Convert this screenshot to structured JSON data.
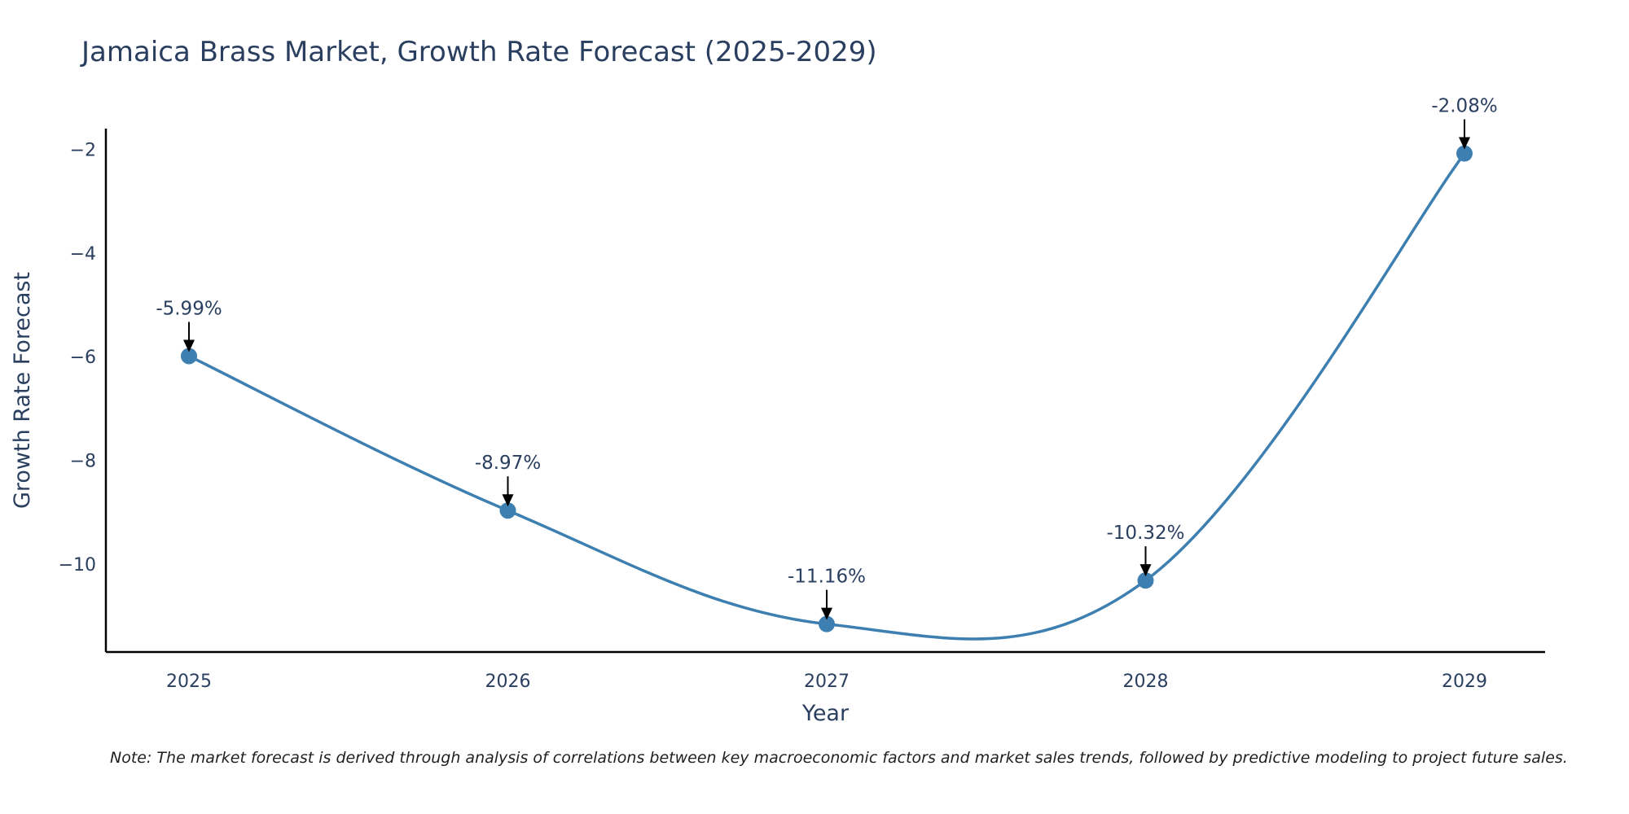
{
  "chart_data": {
    "type": "line",
    "title": "Jamaica Brass Market, Growth Rate Forecast (2025-2029)",
    "xlabel": "Year",
    "ylabel": "Growth Rate Forecast",
    "categories": [
      "2025",
      "2026",
      "2027",
      "2028",
      "2029"
    ],
    "values": [
      -5.99,
      -8.97,
      -11.16,
      -10.32,
      -2.08
    ],
    "data_labels": [
      "-5.99%",
      "-8.97%",
      "-11.16%",
      "-10.32%",
      "-2.08%"
    ],
    "ylim": [
      -11.7,
      -1.6
    ],
    "y_ticks": [
      -2,
      -4,
      -6,
      -8,
      -10
    ],
    "y_tick_labels": [
      "−2",
      "−4",
      "−6",
      "−8",
      "−10"
    ],
    "grid": false,
    "line_shape": "spline",
    "series_color": "#3d7fb0",
    "note": "Note: The market forecast is derived through analysis of correlations between key macroeconomic factors and market sales trends, followed by predictive modeling to project future sales."
  }
}
